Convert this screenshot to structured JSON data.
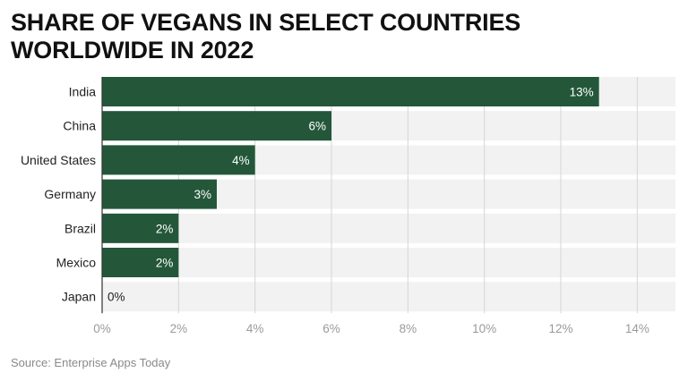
{
  "chart_data": {
    "type": "bar",
    "orientation": "horizontal",
    "title": "SHARE OF VEGANS IN SELECT COUNTRIES WORLDWIDE IN 2022",
    "categories": [
      "India",
      "China",
      "United States",
      "Germany",
      "Brazil",
      "Mexico",
      "Japan"
    ],
    "values": [
      13,
      6,
      4,
      3,
      2,
      2,
      0
    ],
    "data_labels": [
      "13%",
      "6%",
      "4%",
      "3%",
      "2%",
      "2%",
      "0%"
    ],
    "x_ticks": [
      0,
      2,
      4,
      6,
      8,
      10,
      12,
      14
    ],
    "x_tick_labels": [
      "0%",
      "2%",
      "4%",
      "6%",
      "8%",
      "10%",
      "12%",
      "14%"
    ],
    "xlim": [
      0,
      15
    ],
    "xlabel": "",
    "ylabel": "",
    "grid": true,
    "bar_color": "#24573a",
    "track_color": "#f2f2f2",
    "source": "Source: Enterprise Apps Today"
  }
}
